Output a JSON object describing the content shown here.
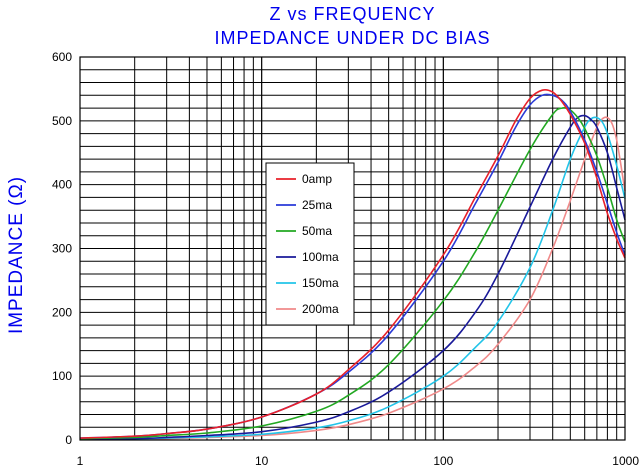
{
  "chart_data": {
    "type": "line",
    "title": "Z vs FREQUENCY",
    "subtitle": "IMPEDANCE UNDER DC BIAS",
    "ylabel": "IMPEDANCE (Ω)",
    "xlabel": "",
    "xscale": "log",
    "xlim": [
      1,
      1000
    ],
    "ylim": [
      0,
      600
    ],
    "x_ticks": [
      "1",
      "10",
      "100",
      "1000"
    ],
    "y_ticks": [
      "0",
      "100",
      "200",
      "300",
      "400",
      "500",
      "600"
    ],
    "grid": true,
    "legend_position": "center-left",
    "series": [
      {
        "name": "0amp",
        "color": "#e8202a",
        "x": [
          1,
          2,
          3,
          5,
          10,
          20,
          30,
          50,
          100,
          150,
          200,
          250,
          300,
          350,
          400,
          450,
          500,
          600,
          700,
          800,
          900,
          1000
        ],
        "y": [
          3,
          6,
          10,
          17,
          36,
          72,
          110,
          172,
          290,
          380,
          445,
          500,
          535,
          548,
          545,
          530,
          510,
          465,
          410,
          355,
          315,
          285
        ]
      },
      {
        "name": "25ma",
        "color": "#2a3ad8",
        "x": [
          1,
          2,
          3,
          5,
          10,
          20,
          30,
          50,
          100,
          150,
          200,
          250,
          300,
          350,
          400,
          450,
          500,
          600,
          700,
          800,
          900,
          1000
        ],
        "y": [
          3,
          6,
          10,
          17,
          36,
          72,
          106,
          165,
          280,
          370,
          435,
          490,
          525,
          540,
          540,
          532,
          515,
          470,
          420,
          370,
          325,
          290
        ]
      },
      {
        "name": "50ma",
        "color": "#22a822",
        "x": [
          1,
          2,
          3,
          5,
          10,
          20,
          30,
          50,
          100,
          150,
          200,
          300,
          400,
          450,
          500,
          550,
          600,
          700,
          800,
          900,
          1000
        ],
        "y": [
          2,
          4,
          7,
          11,
          22,
          45,
          70,
          118,
          218,
          295,
          360,
          455,
          510,
          520,
          517,
          505,
          488,
          445,
          395,
          345,
          310
        ]
      },
      {
        "name": "100ma",
        "color": "#1a1a9a",
        "x": [
          1,
          2,
          3,
          5,
          10,
          20,
          30,
          50,
          100,
          150,
          200,
          300,
          400,
          500,
          550,
          600,
          650,
          700,
          800,
          900,
          1000
        ],
        "y": [
          1,
          2,
          4,
          7,
          13,
          28,
          44,
          75,
          140,
          200,
          260,
          365,
          440,
          490,
          505,
          508,
          502,
          490,
          450,
          395,
          345
        ]
      },
      {
        "name": "150ma",
        "color": "#22c4e8",
        "x": [
          1,
          2,
          3,
          5,
          10,
          20,
          30,
          50,
          100,
          150,
          200,
          300,
          400,
          500,
          600,
          650,
          700,
          750,
          800,
          900,
          1000
        ],
        "y": [
          1,
          2,
          3,
          5,
          9,
          19,
          30,
          52,
          100,
          145,
          185,
          270,
          360,
          440,
          490,
          503,
          505,
          498,
          480,
          430,
          378
        ]
      },
      {
        "name": "200ma",
        "color": "#f08a8a",
        "x": [
          1,
          2,
          3,
          5,
          10,
          20,
          30,
          50,
          100,
          150,
          200,
          300,
          400,
          500,
          600,
          700,
          750,
          800,
          850,
          900,
          950,
          1000
        ],
        "y": [
          1,
          1,
          2,
          4,
          7,
          15,
          24,
          42,
          80,
          115,
          150,
          220,
          300,
          375,
          440,
          490,
          503,
          505,
          495,
          470,
          430,
          390
        ]
      }
    ]
  }
}
